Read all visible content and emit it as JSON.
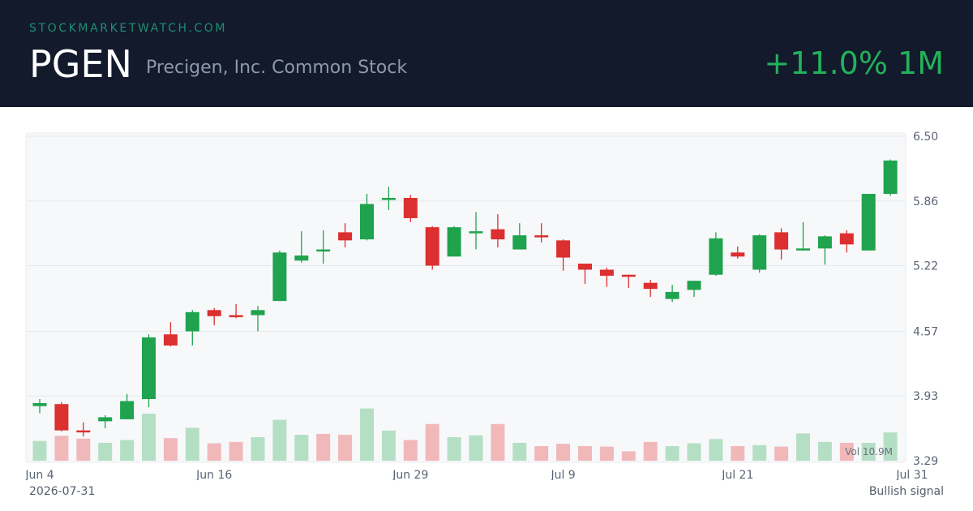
{
  "header": {
    "site": "STOCKMARKETWATCH.COM",
    "ticker": "PGEN",
    "company": "Precigen, Inc. Common Stock",
    "change": "+11.0% 1M"
  },
  "footer": {
    "date": "2026-07-31",
    "signal": "Bullish signal"
  },
  "colors": {
    "up": "#1fa34e",
    "down": "#dc2f2f",
    "up_volume": "#b5dfc4",
    "down_volume": "#f1b8ba",
    "header_bg": "#121a2c",
    "accent": "#23b15a"
  },
  "chart_data": {
    "type": "candlestick",
    "y_ticks": [
      "6.50",
      "5.86",
      "5.22",
      "4.57",
      "3.93",
      "3.29"
    ],
    "ylim": [
      3.29,
      6.5
    ],
    "x_labels": [
      {
        "index": 0,
        "label": "Jun 4"
      },
      {
        "index": 8,
        "label": "Jun 16"
      },
      {
        "index": 17,
        "label": "Jun 29"
      },
      {
        "index": 24,
        "label": "Jul 9"
      },
      {
        "index": 32,
        "label": "Jul 21"
      },
      {
        "index": 40,
        "label": "Jul 31"
      }
    ],
    "volume_label": "Vol 10.9M",
    "candles": [
      {
        "o": 3.83,
        "h": 3.9,
        "l": 3.76,
        "c": 3.86
      },
      {
        "o": 3.85,
        "h": 3.87,
        "l": 3.58,
        "c": 3.59
      },
      {
        "o": 3.59,
        "h": 3.67,
        "l": 3.53,
        "c": 3.57
      },
      {
        "o": 3.68,
        "h": 3.74,
        "l": 3.61,
        "c": 3.72
      },
      {
        "o": 3.7,
        "h": 3.95,
        "l": 3.7,
        "c": 3.88
      },
      {
        "o": 3.9,
        "h": 4.54,
        "l": 3.82,
        "c": 4.51
      },
      {
        "o": 4.54,
        "h": 4.66,
        "l": 4.42,
        "c": 4.43
      },
      {
        "o": 4.57,
        "h": 4.78,
        "l": 4.43,
        "c": 4.76
      },
      {
        "o": 4.78,
        "h": 4.8,
        "l": 4.63,
        "c": 4.72
      },
      {
        "o": 4.73,
        "h": 4.84,
        "l": 4.7,
        "c": 4.71
      },
      {
        "o": 4.73,
        "h": 4.82,
        "l": 4.57,
        "c": 4.78
      },
      {
        "o": 4.87,
        "h": 5.37,
        "l": 4.87,
        "c": 5.35
      },
      {
        "o": 5.27,
        "h": 5.56,
        "l": 5.25,
        "c": 5.32
      },
      {
        "o": 5.38,
        "h": 5.57,
        "l": 5.24,
        "c": 5.38
      },
      {
        "o": 5.55,
        "h": 5.64,
        "l": 5.4,
        "c": 5.47
      },
      {
        "o": 5.48,
        "h": 5.93,
        "l": 5.47,
        "c": 5.83
      },
      {
        "o": 5.87,
        "h": 6.0,
        "l": 5.77,
        "c": 5.89
      },
      {
        "o": 5.89,
        "h": 5.92,
        "l": 5.65,
        "c": 5.69
      },
      {
        "o": 5.6,
        "h": 5.61,
        "l": 5.18,
        "c": 5.22
      },
      {
        "o": 5.31,
        "h": 5.61,
        "l": 5.31,
        "c": 5.6
      },
      {
        "o": 5.56,
        "h": 5.75,
        "l": 5.38,
        "c": 5.56
      },
      {
        "o": 5.58,
        "h": 5.73,
        "l": 5.4,
        "c": 5.48
      },
      {
        "o": 5.38,
        "h": 5.64,
        "l": 5.38,
        "c": 5.52
      },
      {
        "o": 5.52,
        "h": 5.64,
        "l": 5.45,
        "c": 5.5
      },
      {
        "o": 5.47,
        "h": 5.48,
        "l": 5.17,
        "c": 5.3
      },
      {
        "o": 5.24,
        "h": 5.24,
        "l": 5.04,
        "c": 5.18
      },
      {
        "o": 5.18,
        "h": 5.2,
        "l": 5.01,
        "c": 5.12
      },
      {
        "o": 5.13,
        "h": 5.13,
        "l": 5.0,
        "c": 5.12
      },
      {
        "o": 5.05,
        "h": 5.08,
        "l": 4.91,
        "c": 4.99
      },
      {
        "o": 4.89,
        "h": 5.03,
        "l": 4.86,
        "c": 4.96
      },
      {
        "o": 4.98,
        "h": 5.07,
        "l": 4.91,
        "c": 5.07
      },
      {
        "o": 5.13,
        "h": 5.55,
        "l": 5.12,
        "c": 5.49
      },
      {
        "o": 5.35,
        "h": 5.41,
        "l": 5.29,
        "c": 5.31
      },
      {
        "o": 5.18,
        "h": 5.53,
        "l": 5.15,
        "c": 5.52
      },
      {
        "o": 5.55,
        "h": 5.59,
        "l": 5.28,
        "c": 5.38
      },
      {
        "o": 5.38,
        "h": 5.65,
        "l": 5.37,
        "c": 5.39
      },
      {
        "o": 5.39,
        "h": 5.52,
        "l": 5.23,
        "c": 5.51
      },
      {
        "o": 5.54,
        "h": 5.57,
        "l": 5.35,
        "c": 5.43
      },
      {
        "o": 5.37,
        "h": 5.92,
        "l": 5.37,
        "c": 5.93
      },
      {
        "o": 5.93,
        "h": 6.27,
        "l": 5.91,
        "c": 6.26
      }
    ],
    "volumes": [
      {
        "v": 0.42,
        "up": true
      },
      {
        "v": 0.53,
        "up": false
      },
      {
        "v": 0.47,
        "up": false
      },
      {
        "v": 0.38,
        "up": true
      },
      {
        "v": 0.44,
        "up": true
      },
      {
        "v": 1.0,
        "up": true
      },
      {
        "v": 0.48,
        "up": false
      },
      {
        "v": 0.7,
        "up": true
      },
      {
        "v": 0.37,
        "up": false
      },
      {
        "v": 0.4,
        "up": false
      },
      {
        "v": 0.5,
        "up": true
      },
      {
        "v": 0.87,
        "up": true
      },
      {
        "v": 0.55,
        "up": true
      },
      {
        "v": 0.57,
        "up": false
      },
      {
        "v": 0.55,
        "up": false
      },
      {
        "v": 1.11,
        "up": true
      },
      {
        "v": 0.64,
        "up": true
      },
      {
        "v": 0.44,
        "up": false
      },
      {
        "v": 0.78,
        "up": false
      },
      {
        "v": 0.5,
        "up": true
      },
      {
        "v": 0.54,
        "up": true
      },
      {
        "v": 0.78,
        "up": false
      },
      {
        "v": 0.38,
        "up": true
      },
      {
        "v": 0.31,
        "up": false
      },
      {
        "v": 0.36,
        "up": false
      },
      {
        "v": 0.31,
        "up": false
      },
      {
        "v": 0.3,
        "up": false
      },
      {
        "v": 0.2,
        "up": false
      },
      {
        "v": 0.4,
        "up": false
      },
      {
        "v": 0.31,
        "up": true
      },
      {
        "v": 0.37,
        "up": true
      },
      {
        "v": 0.46,
        "up": true
      },
      {
        "v": 0.31,
        "up": false
      },
      {
        "v": 0.33,
        "up": true
      },
      {
        "v": 0.3,
        "up": false
      },
      {
        "v": 0.58,
        "up": true
      },
      {
        "v": 0.4,
        "up": true
      },
      {
        "v": 0.38,
        "up": false
      },
      {
        "v": 0.38,
        "up": true
      },
      {
        "v": 0.6,
        "up": true
      }
    ]
  }
}
